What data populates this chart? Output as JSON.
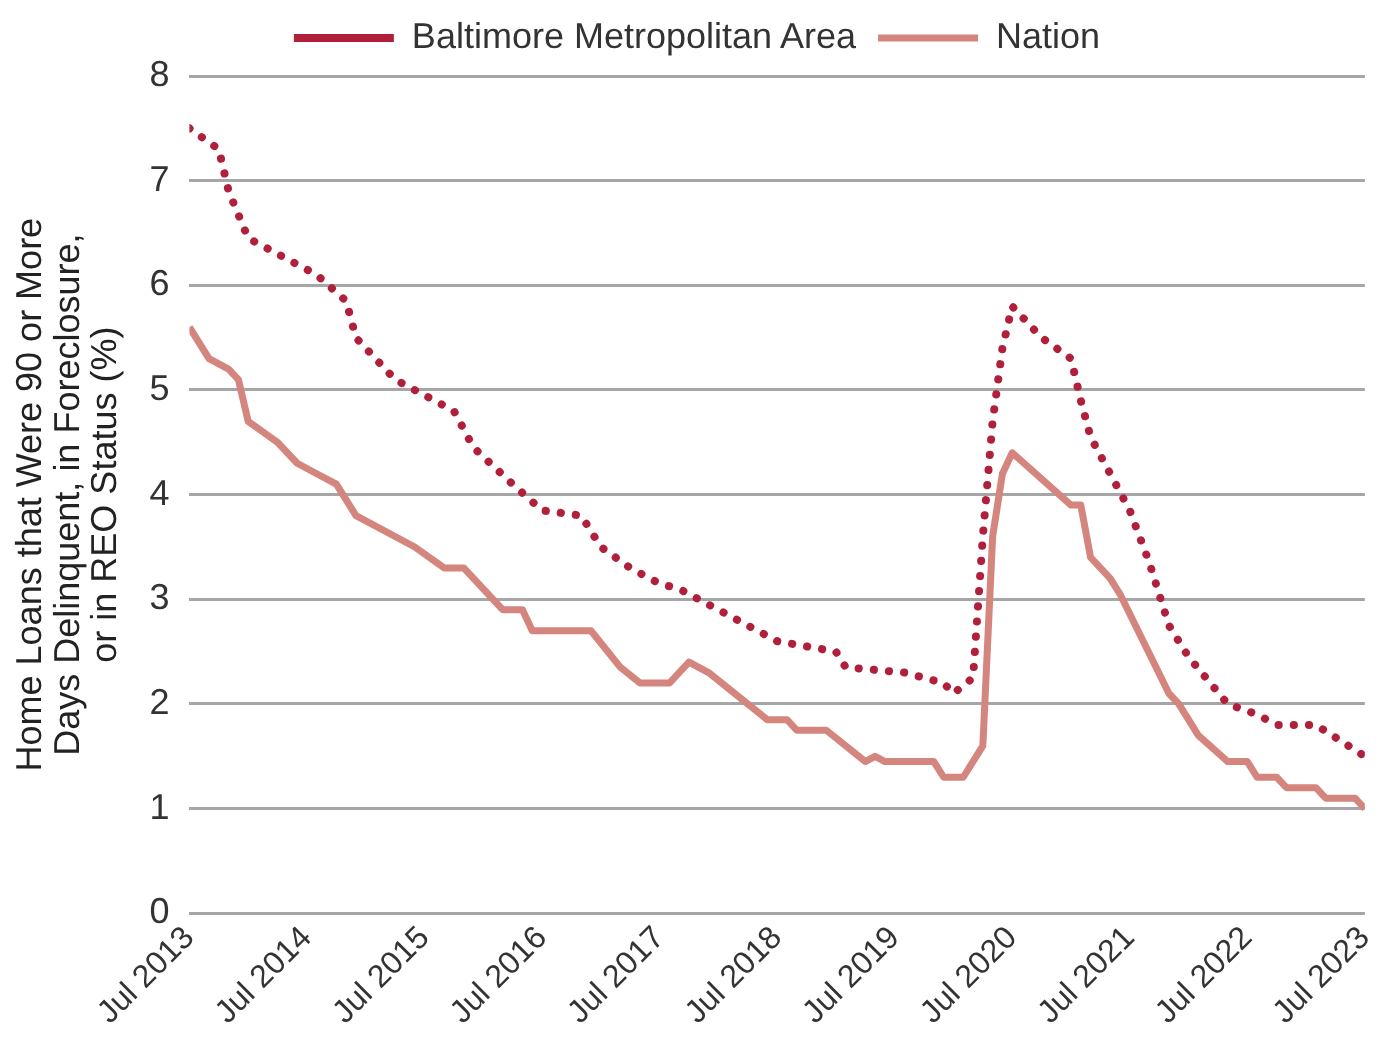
{
  "chart_data": {
    "type": "line",
    "ylabel": "Home Loans that Were 90 or More Days Delinquent, in Foreclosure, or in REO Status (%)",
    "xlim": [
      "2013-07",
      "2023-07"
    ],
    "xticks": [
      {
        "value": "2013-07",
        "label": "Jul 2013"
      },
      {
        "value": "2014-07",
        "label": "Jul 2014"
      },
      {
        "value": "2015-07",
        "label": "Jul 2015"
      },
      {
        "value": "2016-07",
        "label": "Jul 2016"
      },
      {
        "value": "2017-07",
        "label": "Jul 2017"
      },
      {
        "value": "2018-07",
        "label": "Jul 2018"
      },
      {
        "value": "2019-07",
        "label": "Jul 2019"
      },
      {
        "value": "2020-07",
        "label": "Jul 2020"
      },
      {
        "value": "2021-07",
        "label": "Jul 2021"
      },
      {
        "value": "2022-07",
        "label": "Jul 2022"
      },
      {
        "value": "2023-07",
        "label": "Jul 2023"
      }
    ],
    "ylim": [
      0,
      8
    ],
    "yticks": [
      0,
      1,
      2,
      3,
      4,
      5,
      6,
      7,
      8
    ],
    "grid": "y",
    "legend": "top",
    "marker": "none",
    "series": [
      {
        "name": "Baltimore Metropolitan Area",
        "color": "#b0203a",
        "line_style": "dotted",
        "x": [
          "2013-07",
          "2013-10",
          "2013-11",
          "2014-01",
          "2014-04",
          "2014-08",
          "2014-11",
          "2014-12",
          "2015-04",
          "2015-08",
          "2015-10",
          "2015-12",
          "2016-04",
          "2016-07",
          "2016-11",
          "2017-01",
          "2017-04",
          "2017-07",
          "2017-09",
          "2017-12",
          "2018-04",
          "2018-07",
          "2019-01",
          "2019-02",
          "2019-08",
          "2019-12",
          "2020-01",
          "2020-03",
          "2020-04",
          "2020-05",
          "2020-06",
          "2020-07",
          "2020-10",
          "2021-01",
          "2021-02",
          "2021-03",
          "2021-05",
          "2021-07",
          "2021-09",
          "2021-11",
          "2022-01",
          "2022-05",
          "2022-08",
          "2022-10",
          "2023-02",
          "2023-07"
        ],
        "values": [
          7.5,
          7.3,
          6.9,
          6.45,
          6.3,
          6.1,
          5.85,
          5.5,
          5.1,
          4.9,
          4.8,
          4.45,
          4.1,
          3.85,
          3.8,
          3.5,
          3.3,
          3.15,
          3.1,
          2.95,
          2.75,
          2.6,
          2.5,
          2.35,
          2.3,
          2.2,
          2.1,
          2.25,
          3.6,
          4.7,
          5.4,
          5.8,
          5.5,
          5.3,
          4.9,
          4.55,
          4.2,
          3.85,
          3.35,
          2.75,
          2.45,
          2.0,
          1.9,
          1.8,
          1.8,
          1.5
        ]
      },
      {
        "name": "Nation",
        "color": "#d4867e",
        "line_style": "solid",
        "x": [
          "2013-07",
          "2013-09",
          "2013-11",
          "2013-12",
          "2014-01",
          "2014-04",
          "2014-06",
          "2014-08",
          "2014-10",
          "2014-12",
          "2015-04",
          "2015-06",
          "2015-09",
          "2015-11",
          "2016-03",
          "2016-05",
          "2016-06",
          "2016-12",
          "2017-03",
          "2017-05",
          "2017-08",
          "2017-10",
          "2017-12",
          "2018-06",
          "2018-08",
          "2018-09",
          "2018-12",
          "2019-04",
          "2019-05",
          "2019-06",
          "2019-11",
          "2019-12",
          "2020-02",
          "2020-04",
          "2020-05",
          "2020-06",
          "2020-07",
          "2021-01",
          "2021-02",
          "2021-03",
          "2021-05",
          "2021-06",
          "2021-11",
          "2021-12",
          "2022-02",
          "2022-05",
          "2022-07",
          "2022-08",
          "2022-10",
          "2022-11",
          "2023-02",
          "2023-03",
          "2023-06",
          "2023-07"
        ],
        "values": [
          5.6,
          5.3,
          5.2,
          5.1,
          4.7,
          4.5,
          4.3,
          4.2,
          4.1,
          3.8,
          3.6,
          3.5,
          3.3,
          3.3,
          2.9,
          2.9,
          2.7,
          2.7,
          2.35,
          2.2,
          2.2,
          2.4,
          2.3,
          1.85,
          1.85,
          1.75,
          1.75,
          1.45,
          1.5,
          1.45,
          1.45,
          1.3,
          1.3,
          1.6,
          3.6,
          4.2,
          4.4,
          3.9,
          3.9,
          3.4,
          3.2,
          3.05,
          2.1,
          2.0,
          1.7,
          1.45,
          1.45,
          1.3,
          1.3,
          1.2,
          1.2,
          1.1,
          1.1,
          1.0
        ]
      }
    ]
  }
}
